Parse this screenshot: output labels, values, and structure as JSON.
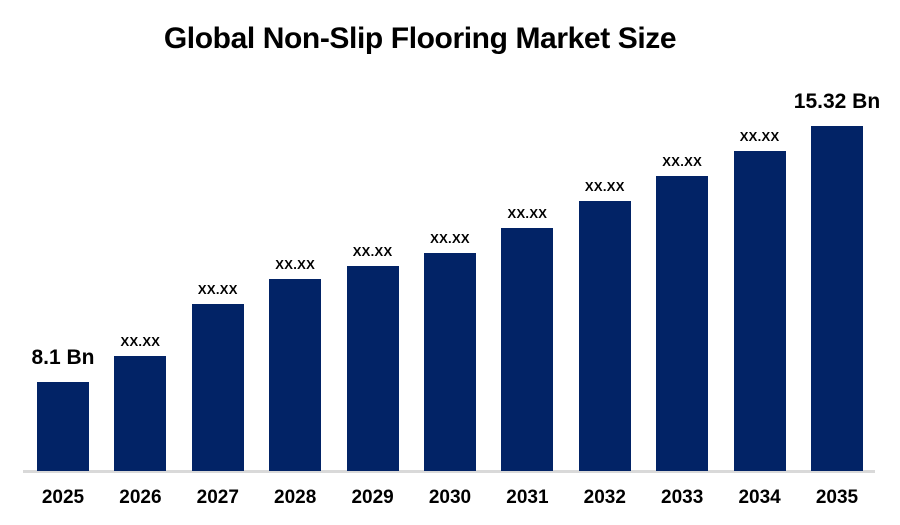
{
  "title": "Global Non-Slip Flooring Market Size",
  "colors": {
    "bar": "#022366",
    "axis_line": "#d9d9d9",
    "title_text": "#000000",
    "label_text": "#000000",
    "background": "#ffffff"
  },
  "chart_data": {
    "type": "bar",
    "title": "Global Non-Slip Flooring Market Size",
    "categories": [
      "2025",
      "2026",
      "2027",
      "2028",
      "2029",
      "2030",
      "2031",
      "2032",
      "2033",
      "2034",
      "2035"
    ],
    "values": [
      8.1,
      8.83,
      10.3,
      11.0,
      11.37,
      11.74,
      12.44,
      13.2,
      13.91,
      14.61,
      15.32
    ],
    "value_labels": [
      "8.1 Bn",
      "XX.XX",
      "XX.XX",
      "XX.XX",
      "XX.XX",
      "XX.XX",
      "XX.XX",
      "XX.XX",
      "XX.XX",
      "XX.XX",
      "15.32 Bn"
    ],
    "emphasized": [
      true,
      false,
      false,
      false,
      false,
      false,
      false,
      false,
      false,
      false,
      true
    ],
    "unit": "Bn",
    "xlabel": "",
    "ylabel": "",
    "y_axis_visible": false,
    "y_baseline_value": 5.59,
    "ymax": 15.32,
    "grid": false,
    "legend": false,
    "bar_color": "#022366",
    "note": "Middle-year data labels are masked as XX.XX in the source image; numeric values are estimated from bar heights."
  }
}
